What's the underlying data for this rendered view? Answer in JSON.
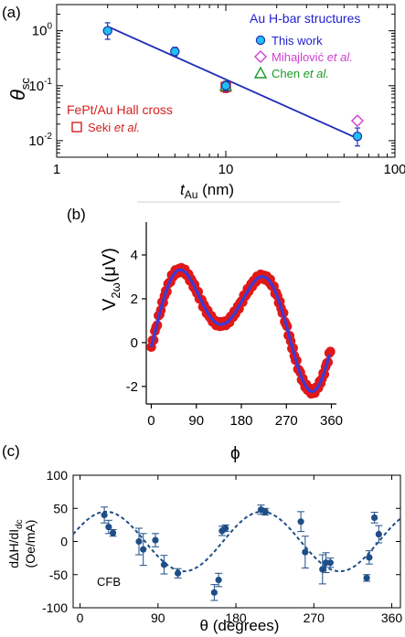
{
  "chart_data": [
    {
      "panel": "(a)",
      "type": "scatter",
      "xscale": "log",
      "yscale": "log",
      "xlim": [
        1,
        100
      ],
      "ylim": [
        0.005,
        3
      ],
      "xlabel_main": "t",
      "xlabel_sub": "Au",
      "xlabel_unit": " (nm)",
      "ylabel_main": "θ",
      "ylabel_sub": "sc",
      "xticks": [
        {
          "v": 1,
          "label": "1"
        },
        {
          "v": 10,
          "label": "10"
        },
        {
          "v": 100,
          "label": "100"
        }
      ],
      "yticks": [
        {
          "v": 1,
          "base": "10",
          "exp": "0"
        },
        {
          "v": 0.1,
          "base": "10",
          "exp": "-1"
        },
        {
          "v": 0.01,
          "base": "10",
          "exp": "-2"
        }
      ],
      "legend_group1_title": "Au H-bar structures",
      "legend_group2_title": "FePt/Au Hall cross",
      "colors": {
        "this_work": "#1ec0ee",
        "mihajlovic": "#d040d0",
        "chen": "#1b9a2a",
        "seki": "#d42020",
        "fit": "#1f2db8",
        "title_blue": "#1f1fd0",
        "title_red": "#d42020"
      },
      "series": [
        {
          "name": "This work",
          "name_suffix": "",
          "marker": "circle",
          "points": [
            {
              "x": 2,
              "y": 1.0,
              "ylo": 0.7,
              "yhi": 1.4
            },
            {
              "x": 5,
              "y": 0.42,
              "ylo": 0.35,
              "yhi": 0.5
            },
            {
              "x": 10,
              "y": 0.1,
              "ylo": 0.08,
              "yhi": 0.12
            },
            {
              "x": 60,
              "y": 0.012,
              "ylo": 0.008,
              "yhi": 0.017
            }
          ]
        },
        {
          "name": "Mihajlović ",
          "name_suffix": "et al.",
          "marker": "diamond",
          "points": [
            {
              "x": 60,
              "y": 0.023
            }
          ]
        },
        {
          "name": "Chen ",
          "name_suffix": "et al.",
          "marker": "triangle",
          "points": [
            {
              "x": 10,
              "y": 0.1
            }
          ]
        },
        {
          "name": "Seki ",
          "name_suffix": "et al.",
          "marker": "square",
          "points": [
            {
              "x": 10,
              "y": 0.095,
              "ylo": 0.075,
              "yhi": 0.12
            }
          ]
        }
      ],
      "fit_line": {
        "x": [
          2,
          60
        ],
        "y": [
          1.2,
          0.011
        ]
      }
    },
    {
      "panel": "(b)",
      "type": "scatter",
      "xlim": [
        -10,
        370
      ],
      "ylim": [
        -2.8,
        5.5
      ],
      "xlabel": "ϕ",
      "ylabel_main": "V",
      "ylabel_sub": "2ω",
      "ylabel_unit": "(μV)",
      "xticks": [
        0,
        90,
        180,
        270,
        360
      ],
      "yticks": [
        -2,
        0,
        2,
        4
      ],
      "colors": {
        "points": "#e01818",
        "fit": "#3b3bd8"
      },
      "series": [
        {
          "marker": "circle",
          "x_range": [
            0,
            358
          ],
          "n_points": 150
        },
        {
          "marker": "line"
        }
      ]
    },
    {
      "panel": "(c)",
      "type": "scatter",
      "xlim": [
        -8,
        370
      ],
      "ylim": [
        -100,
        100
      ],
      "xlabel": "θ (degrees)",
      "ylabel_line1": "dΔH/dI",
      "ylabel_line1_sub": "dc",
      "ylabel_line2": "(Oe/mA)",
      "xticks": [
        0,
        90,
        180,
        270,
        360
      ],
      "yticks": [
        -100,
        -50,
        0,
        50,
        100
      ],
      "annotation": "CFB",
      "colors": {
        "points": "#1f4e87",
        "fit": "#1f4e87"
      },
      "series": [
        {
          "marker": "circle",
          "points": [
            {
              "x": 28,
              "y": 40,
              "err": 12
            },
            {
              "x": 33,
              "y": 22,
              "err": 10
            },
            {
              "x": 38,
              "y": 13,
              "err": 5
            },
            {
              "x": 68,
              "y": 0,
              "err": 20
            },
            {
              "x": 73,
              "y": -12,
              "err": 24
            },
            {
              "x": 87,
              "y": 2,
              "err": 10
            },
            {
              "x": 97,
              "y": -35,
              "err": 14
            },
            {
              "x": 113,
              "y": -48,
              "err": 7
            },
            {
              "x": 155,
              "y": -77,
              "err": 12
            },
            {
              "x": 160,
              "y": -58,
              "err": 10
            },
            {
              "x": 164,
              "y": 16,
              "err": 7
            },
            {
              "x": 168,
              "y": 20,
              "err": 5
            },
            {
              "x": 209,
              "y": 48,
              "err": 7
            },
            {
              "x": 214,
              "y": 45,
              "err": 5
            },
            {
              "x": 255,
              "y": 30,
              "err": 15
            },
            {
              "x": 260,
              "y": -16,
              "err": 24
            },
            {
              "x": 280,
              "y": -42,
              "err": 22
            },
            {
              "x": 284,
              "y": -32,
              "err": 15
            },
            {
              "x": 289,
              "y": -32,
              "err": 7
            },
            {
              "x": 331,
              "y": -55,
              "err": 5
            },
            {
              "x": 334,
              "y": -24,
              "err": 10
            },
            {
              "x": 340,
              "y": 36,
              "err": 8
            },
            {
              "x": 345,
              "y": 11,
              "err": 13
            }
          ]
        },
        {
          "marker": "dashed-line",
          "fit_amplitude": 45,
          "fit_period_deg": 180,
          "fit_phase_deg": 30
        }
      ]
    }
  ]
}
